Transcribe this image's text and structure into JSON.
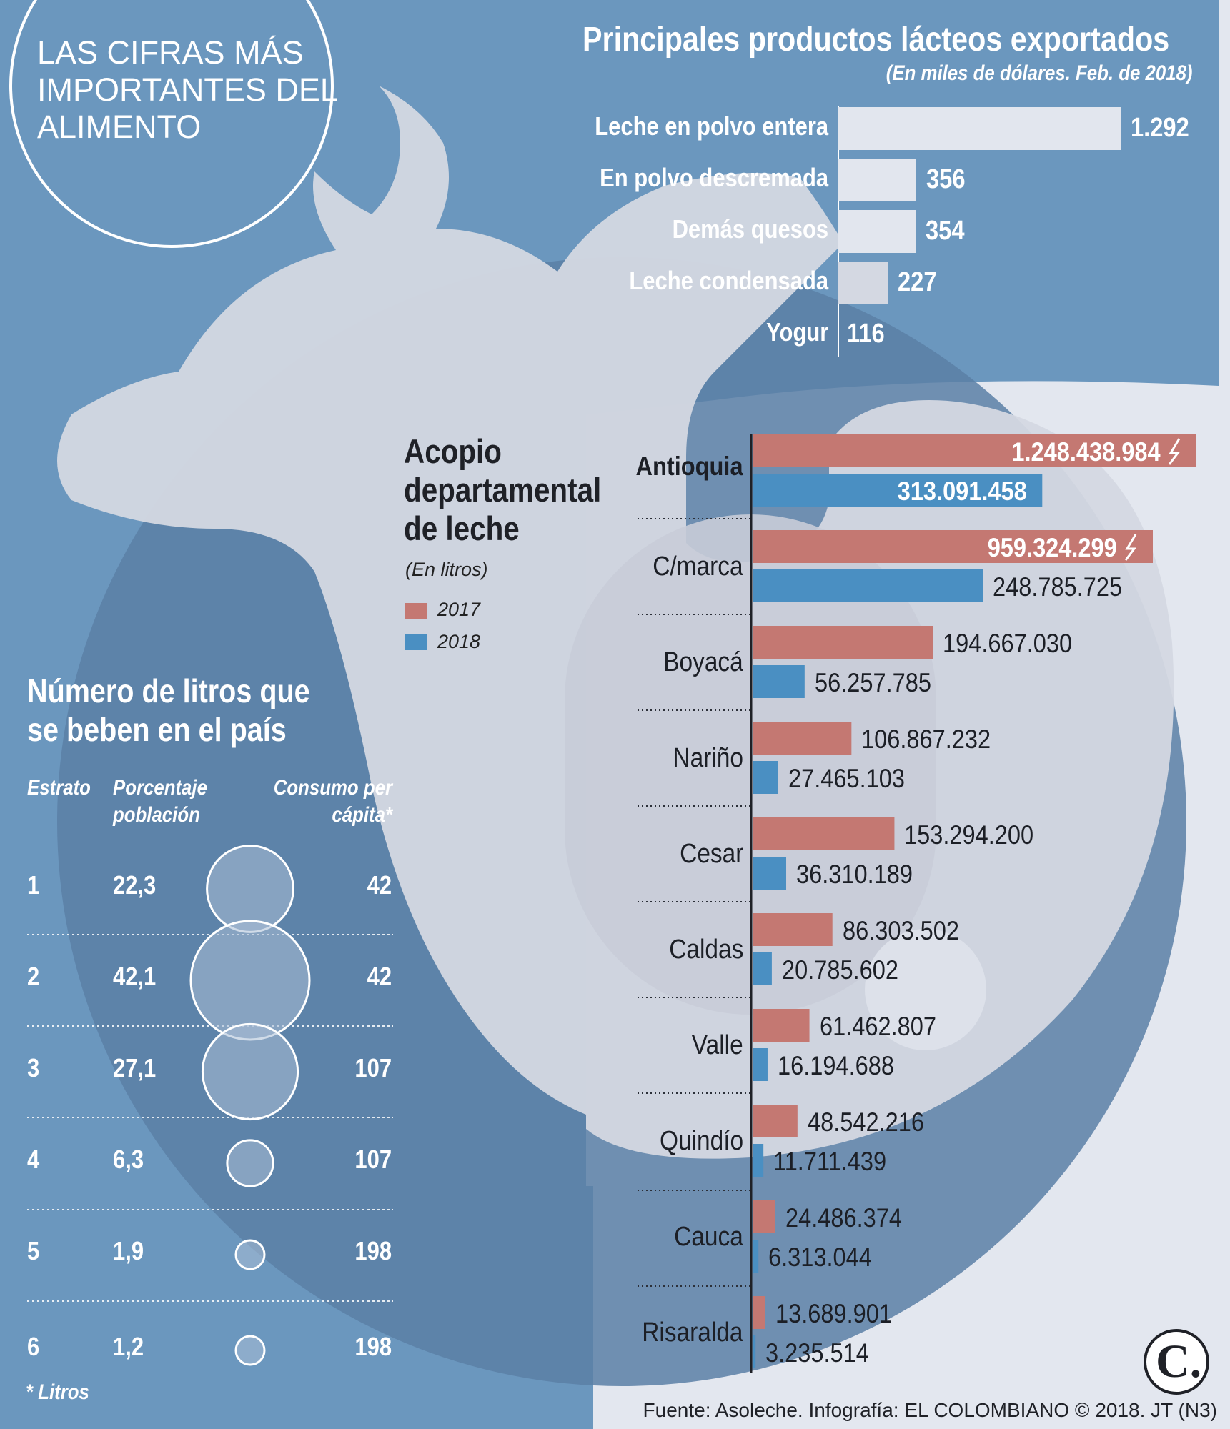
{
  "badge": {
    "title": "LAS CIFRAS MÁS IMPORTANTES DEL ALIMENTO"
  },
  "colors": {
    "bg_blue": "#6b97be",
    "cow": "#d4d8e2",
    "series_2017": "#c47872",
    "series_2018": "#4a8fc2",
    "exports_bar": "#e2e6ee"
  },
  "chart_data": [
    {
      "type": "bar",
      "orientation": "horizontal",
      "title": "Principales productos lácteos exportados",
      "subtitle": "(En miles de dólares. Feb. de 2018)",
      "categories": [
        "Leche en polvo entera",
        "En polvo descremada",
        "Demás quesos",
        "Leche condensada",
        "Yogur"
      ],
      "values": [
        1292,
        356,
        354,
        227,
        116
      ],
      "value_labels": [
        "1.292",
        "356",
        "354",
        "227",
        "116"
      ]
    },
    {
      "type": "bar",
      "orientation": "horizontal",
      "title": "Acopio departamental de leche",
      "subtitle": "(En litros)",
      "legend": [
        "2017",
        "2018"
      ],
      "categories": [
        "Antioquia",
        "C/marca",
        "Boyacá",
        "Nariño",
        "Cesar",
        "Caldas",
        "Valle",
        "Quindío",
        "Cauca",
        "Risaralda"
      ],
      "series": [
        {
          "name": "2017",
          "values": [
            1248438984,
            959324299,
            194667030,
            106867232,
            153294200,
            86303502,
            61462807,
            48542216,
            24486374,
            13689901
          ],
          "value_labels": [
            "1.248.438.984",
            "959.324.299",
            "194.667.030",
            "106.867.232",
            "153.294.200",
            "86.303.502",
            "61.462.807",
            "48.542.216",
            "24.486.374",
            "13.689.901"
          ]
        },
        {
          "name": "2018",
          "values": [
            313091458,
            248785725,
            56257785,
            27465103,
            36310189,
            20785602,
            16194688,
            11711439,
            6313044,
            3235514
          ],
          "value_labels": [
            "313.091.458",
            "248.785.725",
            "56.257.785",
            "27.465.103",
            "36.310.189",
            "20.785.602",
            "16.194.688",
            "11.711.439",
            "6.313.044",
            "3.235.514"
          ]
        }
      ],
      "axis_break_on": [
        "Antioquia",
        "C/marca"
      ]
    },
    {
      "type": "table",
      "title": "Número de litros que se beben en el país",
      "columns": [
        "Estrato",
        "Porcentaje población",
        "Consumo per cápita*"
      ],
      "rows": [
        {
          "estrato": "1",
          "porcentaje": "22,3",
          "consumo": "42"
        },
        {
          "estrato": "2",
          "porcentaje": "42,1",
          "consumo": "42"
        },
        {
          "estrato": "3",
          "porcentaje": "27,1",
          "consumo": "107"
        },
        {
          "estrato": "4",
          "porcentaje": "6,3",
          "consumo": "107"
        },
        {
          "estrato": "5",
          "porcentaje": "1,9",
          "consumo": "198"
        },
        {
          "estrato": "6",
          "porcentaje": "1,2",
          "consumo": "198"
        }
      ],
      "bubble_values": [
        22.3,
        42.1,
        27.1,
        6.3,
        1.9,
        1.2
      ],
      "footnote": "* Litros"
    }
  ],
  "source": "Fuente: Asoleche. Infografía: EL COLOMBIANO © 2018. JT (N3)",
  "logo": {
    "letter": "C."
  }
}
